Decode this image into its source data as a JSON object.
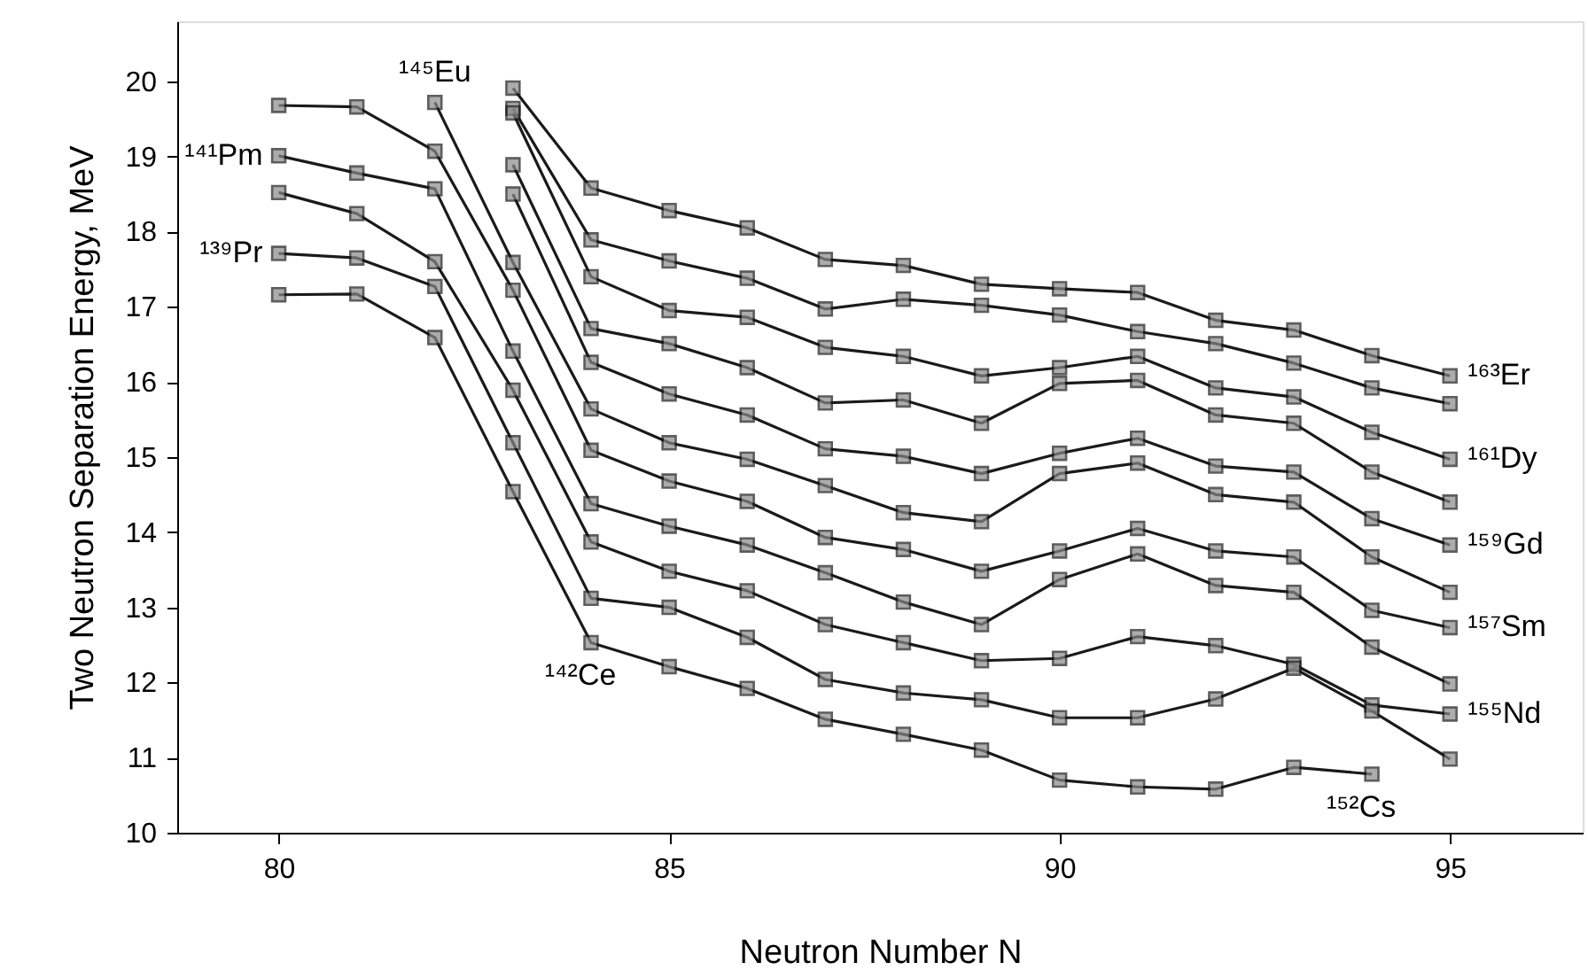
{
  "chart_data": {
    "type": "line",
    "xlabel": "Neutron Number  N",
    "ylabel": "Two Neutron Separation Energy,  MeV",
    "xlim": [
      78.7,
      96.7
    ],
    "ylim": [
      10,
      20.8
    ],
    "xticks": [
      80,
      85,
      90,
      95
    ],
    "yticks": [
      10,
      11,
      12,
      13,
      14,
      15,
      16,
      17,
      18,
      19,
      20
    ],
    "grid": false,
    "marker": "square",
    "line_style": "solid",
    "series": [
      {
        "color": "#1a1a1a",
        "x": [
          83,
          84,
          85,
          86,
          87,
          88,
          89,
          90,
          91,
          92,
          93,
          94,
          95
        ],
        "values": [
          19.91,
          18.58,
          18.28,
          18.05,
          17.63,
          17.55,
          17.3,
          17.24,
          17.19,
          16.82,
          16.69,
          16.35,
          16.08
        ]
      },
      {
        "color": "#1a1a1a",
        "x": [
          83,
          84,
          85,
          86,
          87,
          88,
          89,
          90,
          91,
          92,
          93,
          94,
          95
        ],
        "values": [
          19.64,
          17.89,
          17.61,
          17.38,
          16.97,
          17.1,
          17.02,
          16.89,
          16.67,
          16.51,
          16.25,
          15.92,
          15.71
        ]
      },
      {
        "color": "#1a1a1a",
        "x": [
          83,
          84,
          85,
          86,
          87,
          88,
          89,
          90,
          91,
          92,
          93,
          94,
          95
        ],
        "values": [
          19.58,
          17.4,
          16.95,
          16.86,
          16.46,
          16.34,
          16.08,
          16.19,
          16.34,
          15.92,
          15.8,
          15.33,
          14.97
        ]
      },
      {
        "color": "#1a1a1a",
        "x": [
          83,
          84,
          85,
          86,
          87,
          88,
          89,
          90,
          91,
          92,
          93,
          94,
          95
        ],
        "values": [
          18.89,
          16.71,
          16.51,
          16.19,
          15.72,
          15.76,
          15.45,
          15.98,
          16.02,
          15.56,
          15.45,
          14.8,
          14.4
        ]
      },
      {
        "color": "#1a1a1a",
        "x": [
          83,
          84,
          85,
          86,
          87,
          88,
          89,
          90,
          91,
          92,
          93,
          94,
          95
        ],
        "values": [
          18.5,
          16.26,
          15.84,
          15.56,
          15.11,
          15.01,
          14.78,
          15.05,
          15.25,
          14.88,
          14.8,
          14.18,
          13.83
        ]
      },
      {
        "color": "#1a1a1a",
        "x": [
          82,
          83,
          84,
          85,
          86,
          87,
          88,
          89,
          90,
          91,
          92,
          93,
          94,
          95
        ],
        "values": [
          19.72,
          17.59,
          15.64,
          15.19,
          14.97,
          14.62,
          14.26,
          14.14,
          14.78,
          14.92,
          14.5,
          14.4,
          13.67,
          13.2
        ]
      },
      {
        "color": "#1a1a1a",
        "x": [
          80,
          81,
          82,
          83,
          84,
          85,
          86,
          87,
          88,
          89,
          90,
          91,
          92,
          93,
          94,
          95
        ],
        "values": [
          19.68,
          19.66,
          19.07,
          17.22,
          15.09,
          14.68,
          14.41,
          13.93,
          13.77,
          13.48,
          13.75,
          14.05,
          13.75,
          13.67,
          12.96,
          12.73
        ]
      },
      {
        "color": "#1a1a1a",
        "x": [
          80,
          81,
          82,
          83,
          84,
          85,
          86,
          87,
          88,
          89,
          90,
          91,
          92,
          93,
          94,
          95
        ],
        "values": [
          19.01,
          18.78,
          18.57,
          16.41,
          14.38,
          14.08,
          13.83,
          13.46,
          13.07,
          12.77,
          13.37,
          13.71,
          13.29,
          13.2,
          12.47,
          11.98
        ]
      },
      {
        "color": "#1a1a1a",
        "x": [
          80,
          81,
          82,
          83,
          84,
          85,
          86,
          87,
          88,
          89,
          90,
          91,
          92,
          93,
          94,
          95
        ],
        "values": [
          18.52,
          18.24,
          17.6,
          15.89,
          13.87,
          13.48,
          13.22,
          12.77,
          12.53,
          12.29,
          12.32,
          12.61,
          12.49,
          12.24,
          11.7,
          11.58
        ]
      },
      {
        "color": "#1a1a1a",
        "x": [
          80,
          81,
          82,
          83,
          84,
          85,
          86,
          87,
          88,
          89,
          90,
          91,
          92,
          93,
          94,
          95
        ],
        "values": [
          17.71,
          17.65,
          17.27,
          15.19,
          13.12,
          13.0,
          12.6,
          12.04,
          11.86,
          11.77,
          11.53,
          11.53,
          11.78,
          12.19,
          11.62,
          10.98
        ]
      },
      {
        "color": "#1a1a1a",
        "x": [
          80,
          81,
          82,
          83,
          84,
          85,
          86,
          87,
          88,
          89,
          90,
          91,
          92,
          93,
          94
        ],
        "values": [
          17.16,
          17.17,
          16.59,
          14.54,
          12.53,
          12.21,
          11.92,
          11.51,
          11.31,
          11.1,
          10.7,
          10.61,
          10.58,
          10.87,
          10.78
        ]
      }
    ],
    "annotations": [
      {
        "text": "¹⁴⁵Eu",
        "x": 82,
        "y": 19.72
      },
      {
        "text": "¹⁴¹Pm",
        "x": 80,
        "y": 19.01
      },
      {
        "text": "¹³⁹Pr",
        "x": 80,
        "y": 17.71
      },
      {
        "text": "¹⁴²Ce",
        "x": 84,
        "y": 12.53
      },
      {
        "text": "¹⁵²Cs",
        "x": 94,
        "y": 10.78
      },
      {
        "text": "¹⁶³Er",
        "x": 95,
        "y": 16.08
      },
      {
        "text": "¹⁶¹Dy",
        "x": 95,
        "y": 14.97
      },
      {
        "text": "¹⁵⁹Gd",
        "x": 95,
        "y": 13.83
      },
      {
        "text": "¹⁵⁷Sm",
        "x": 95,
        "y": 12.73
      },
      {
        "text": "¹⁵⁵Nd",
        "x": 95,
        "y": 11.58
      }
    ]
  }
}
